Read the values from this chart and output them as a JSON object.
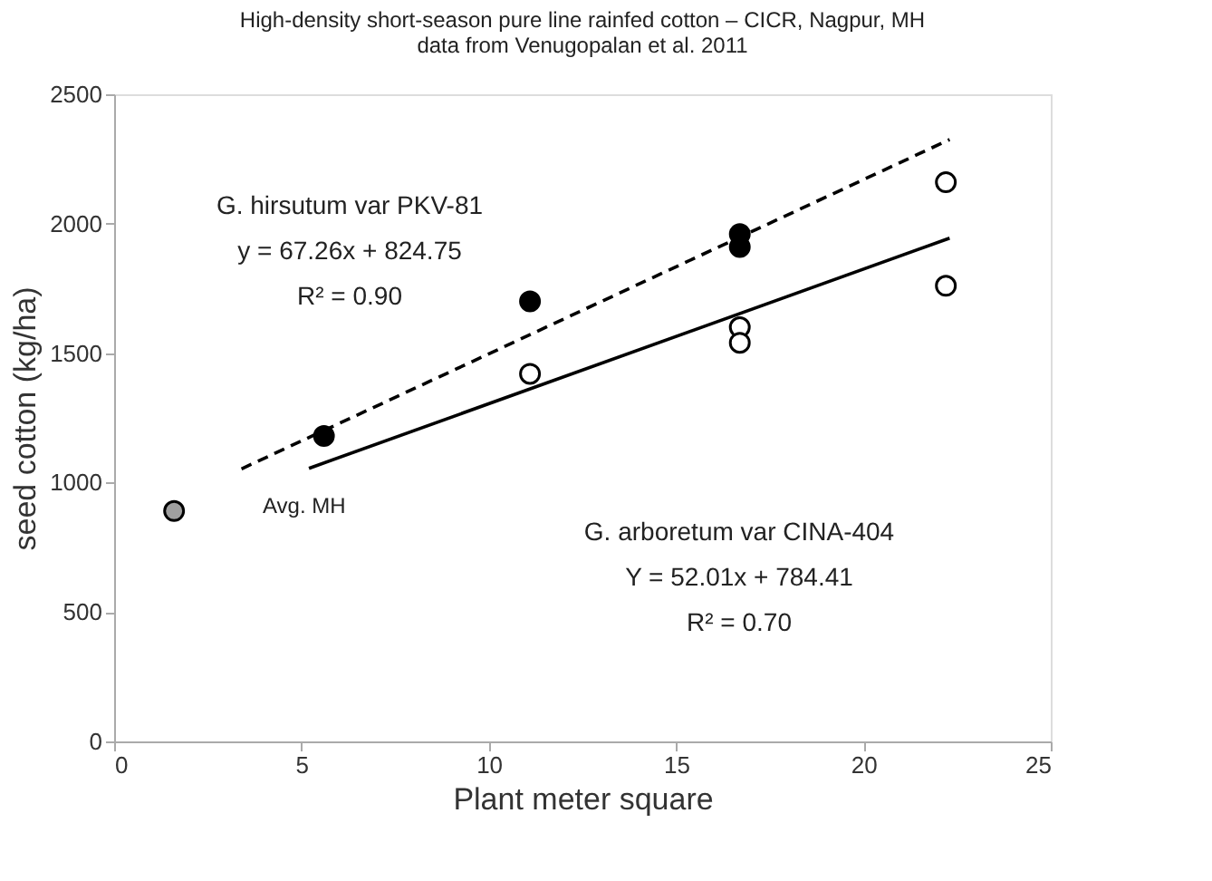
{
  "chart_data": {
    "type": "scatter",
    "title": [
      "High-density short-season pure line rainfed cotton – CICR, Nagpur, MH",
      "data from Venugopalan et al. 2011"
    ],
    "xlabel": "Plant meter square",
    "ylabel": "seed cotton (kg/ha)",
    "xlim": [
      0,
      25
    ],
    "xticks": [
      0,
      5,
      10,
      15,
      20,
      25
    ],
    "ylim": [
      0,
      2500
    ],
    "yticks": [
      0,
      500,
      1000,
      1500,
      2000,
      2500
    ],
    "grid": false,
    "marker": "circle",
    "series": [
      {
        "color": "#000000",
        "x": [
          5.6,
          11.1,
          16.7,
          16.7
        ],
        "values": [
          1180,
          1700,
          1960,
          1910
        ]
      },
      {
        "color": "#ffffff",
        "x": [
          11.1,
          16.7,
          16.7,
          22.2,
          22.2
        ],
        "values": [
          1420,
          1600,
          1540,
          2160,
          1760
        ]
      },
      {
        "color": "#a0a0a0",
        "x": [
          1.6
        ],
        "values": [
          890
        ]
      },
      {
        "type": "line",
        "marker": "none",
        "color": "#000000",
        "line_style": "dashed",
        "x": [
          3.4,
          22.3
        ],
        "values": [
          1053,
          2325
        ]
      },
      {
        "type": "line",
        "marker": "none",
        "color": "#000000",
        "line_style": "solid",
        "x": [
          5.2,
          22.3
        ],
        "values": [
          1055,
          1944
        ]
      }
    ],
    "annotations": [
      "G. hirsutum var PKV-81\ny = 67.26x + 824.75\nR² = 0.90",
      "G. arboretum var CINA-404\nY = 52.01x + 784.41\nR² = 0.70",
      "Avg. MH"
    ]
  }
}
